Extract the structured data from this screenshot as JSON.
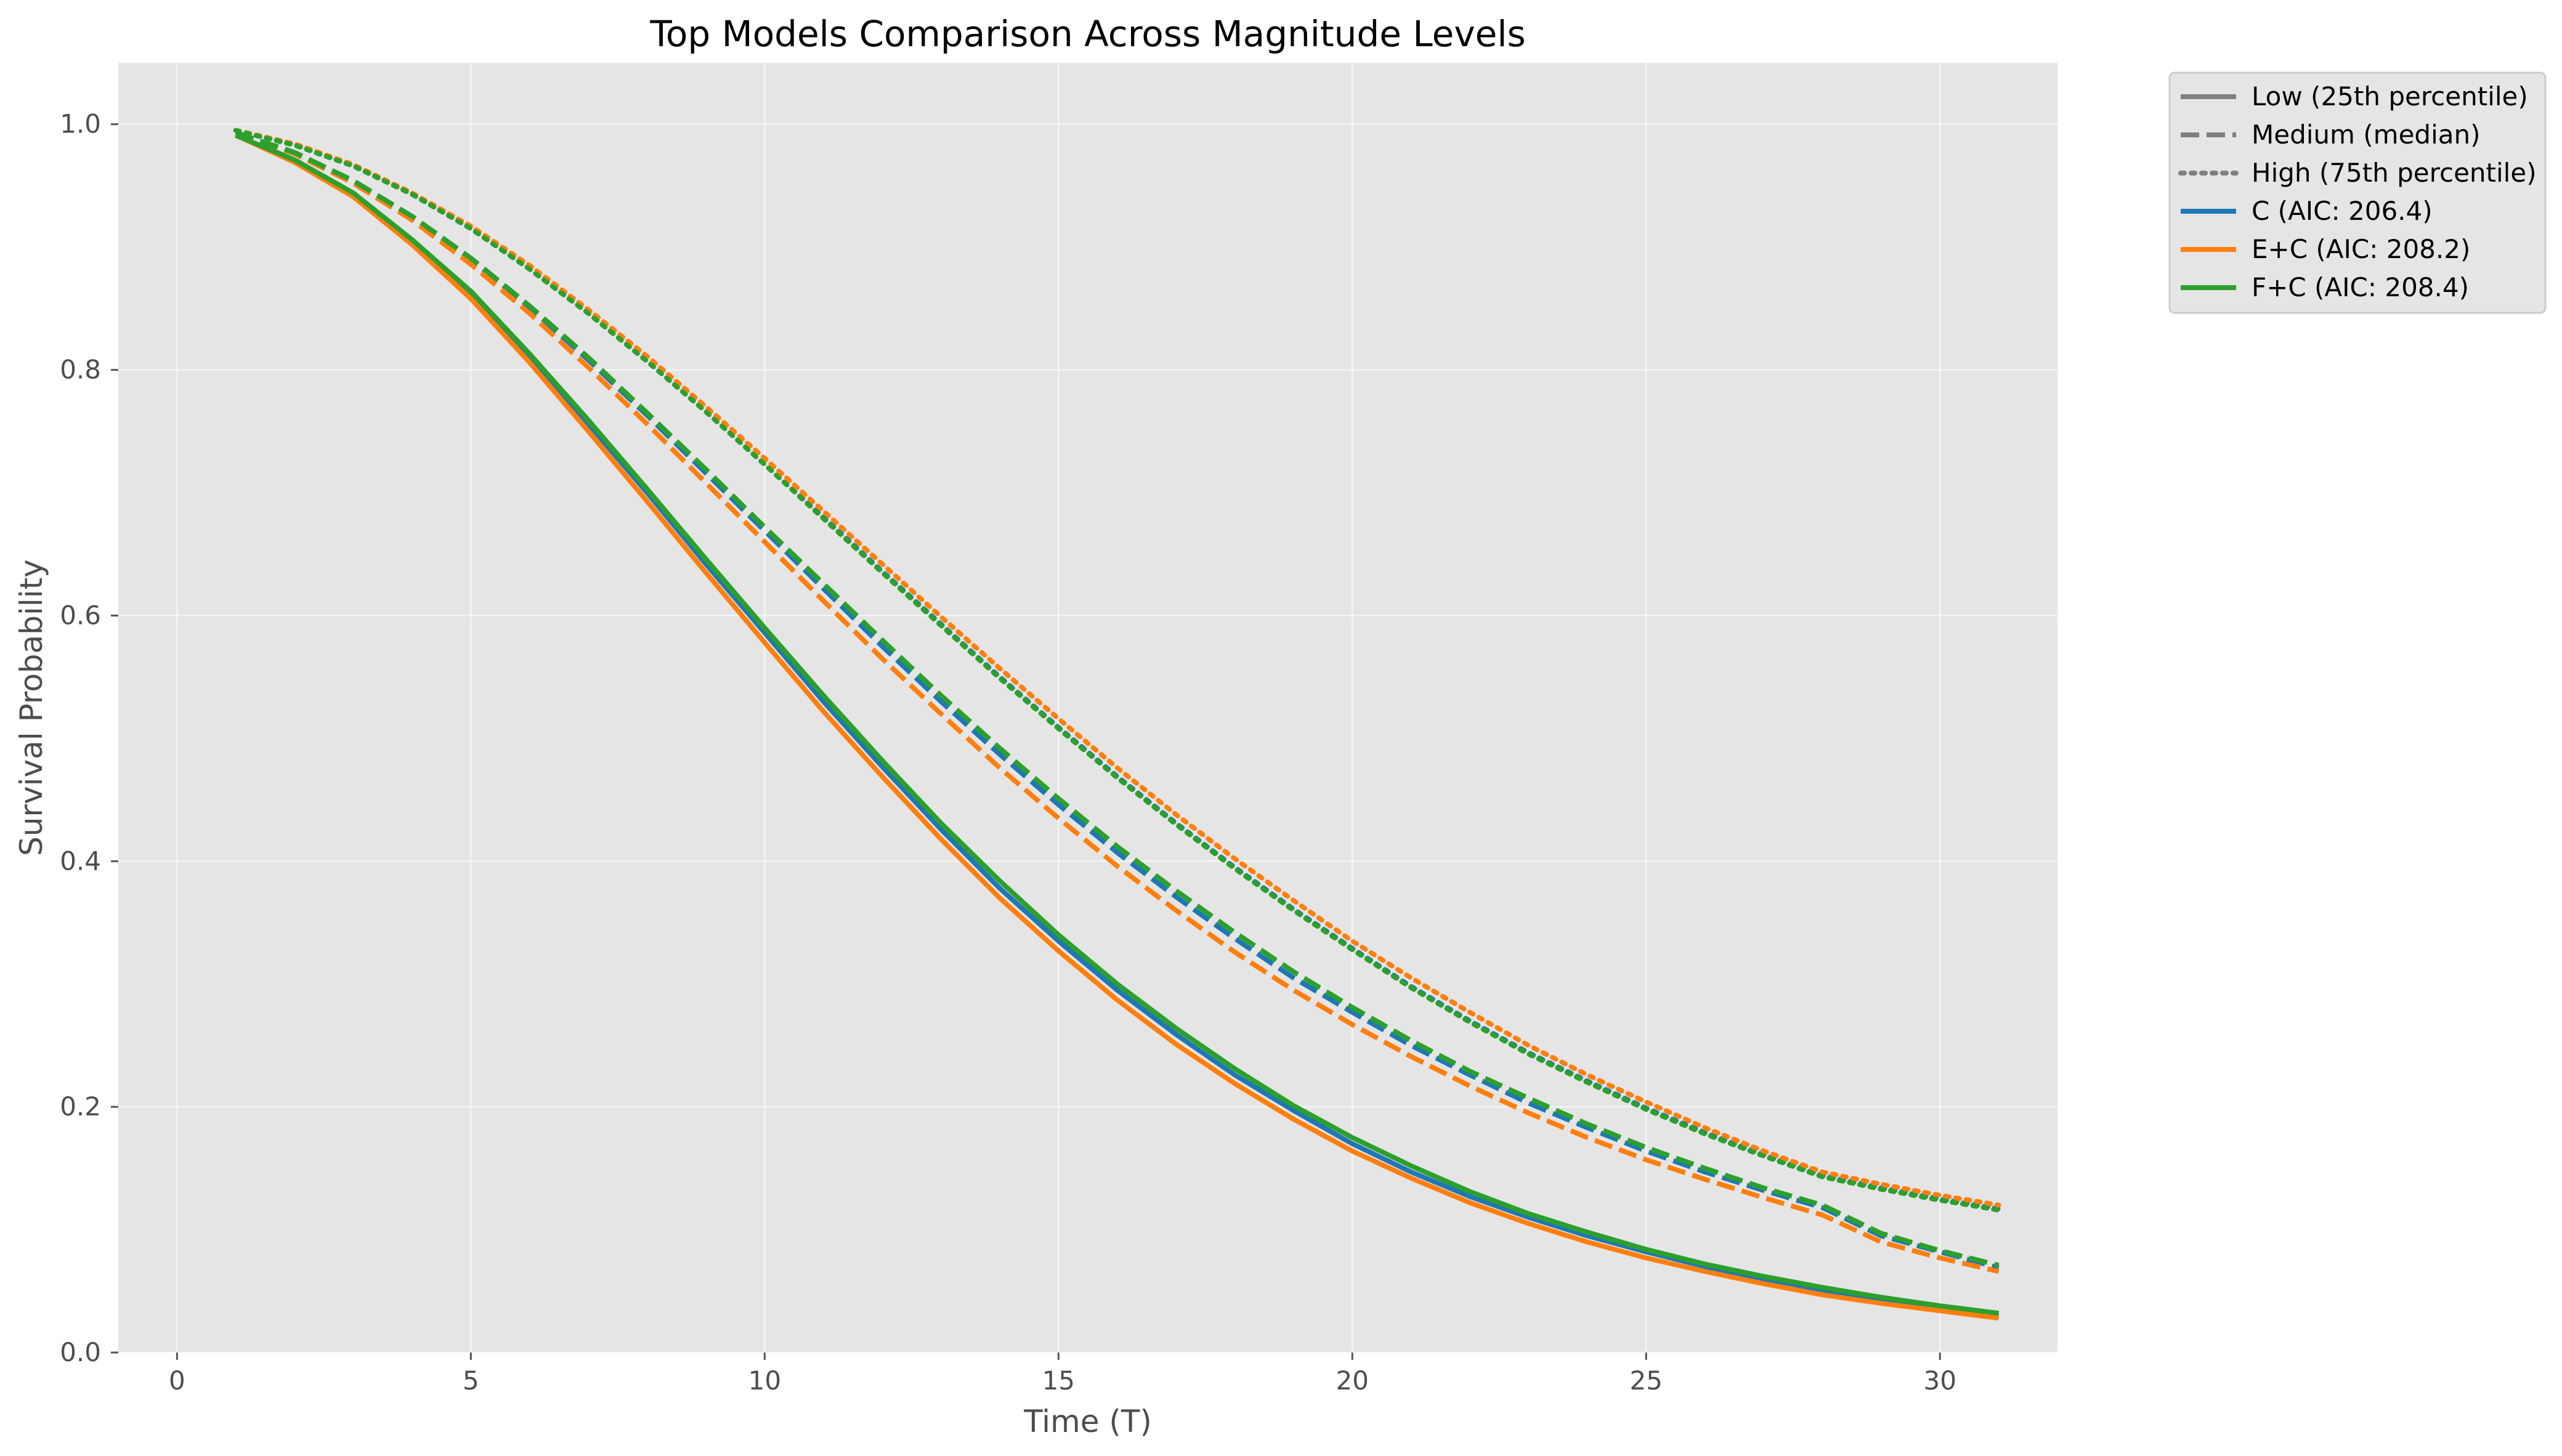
{
  "chart_data": {
    "type": "line",
    "title": "Top Models Comparison Across Magnitude Levels",
    "xlabel": "Time (T)",
    "ylabel": "Survival Probability",
    "xlim": [
      -1,
      32
    ],
    "ylim": [
      0,
      1.05
    ],
    "xticks": [
      0,
      5,
      10,
      15,
      20,
      25,
      30
    ],
    "xtick_labels": [
      "0",
      "5",
      "10",
      "15",
      "20",
      "25",
      "30"
    ],
    "yticks": [
      0,
      0.2,
      0.4,
      0.6,
      0.8,
      1.0
    ],
    "ytick_labels": [
      "0.0",
      "0.2",
      "0.4",
      "0.6",
      "0.8",
      "1.0"
    ],
    "grid": true,
    "legend_position": "outside-top-right",
    "background_color": "#e5e5e5",
    "x": [
      1,
      2,
      3,
      4,
      5,
      6,
      7,
      8,
      9,
      10,
      11,
      12,
      13,
      14,
      15,
      16,
      17,
      18,
      19,
      20,
      21,
      22,
      23,
      24,
      25,
      26,
      27,
      28,
      29,
      30,
      31
    ],
    "series": [
      {
        "name": "C (AIC: 206.4)",
        "model": "C",
        "level": "Low (25th percentile)",
        "color": "#1f77b4",
        "dash": "solid",
        "values": [
          0.991,
          0.97,
          0.943,
          0.905,
          0.862,
          0.811,
          0.756,
          0.7,
          0.642,
          0.586,
          0.53,
          0.477,
          0.426,
          0.378,
          0.335,
          0.295,
          0.259,
          0.226,
          0.197,
          0.17,
          0.147,
          0.127,
          0.11,
          0.095,
          0.082,
          0.07,
          0.06,
          0.051,
          0.043,
          0.036,
          0.03
        ]
      },
      {
        "name": "C (AIC: 206.4)",
        "model": "C",
        "level": "Medium (median)",
        "color": "#1f77b4",
        "dash": "dashed",
        "values": [
          0.993,
          0.977,
          0.954,
          0.925,
          0.89,
          0.851,
          0.808,
          0.763,
          0.716,
          0.669,
          0.622,
          0.575,
          0.53,
          0.487,
          0.446,
          0.407,
          0.371,
          0.337,
          0.305,
          0.277,
          0.25,
          0.226,
          0.203,
          0.183,
          0.164,
          0.147,
          0.132,
          0.118,
          0.095,
          0.082,
          0.069
        ]
      },
      {
        "name": "C (AIC: 206.4)",
        "model": "C",
        "level": "High (75th percentile)",
        "color": "#1f77b4",
        "dash": "dotted",
        "values": [
          0.995,
          0.983,
          0.966,
          0.943,
          0.915,
          0.882,
          0.846,
          0.807,
          0.766,
          0.723,
          0.68,
          0.636,
          0.593,
          0.55,
          0.509,
          0.469,
          0.431,
          0.395,
          0.361,
          0.329,
          0.298,
          0.27,
          0.244,
          0.221,
          0.199,
          0.179,
          0.161,
          0.144,
          0.134,
          0.125,
          0.117
        ]
      },
      {
        "name": "E+C (AIC: 208.2)",
        "model": "E+C",
        "level": "Low (25th percentile)",
        "color": "#ff7f0e",
        "dash": "solid",
        "values": [
          0.991,
          0.969,
          0.941,
          0.902,
          0.858,
          0.806,
          0.75,
          0.693,
          0.635,
          0.578,
          0.522,
          0.469,
          0.418,
          0.37,
          0.327,
          0.287,
          0.251,
          0.219,
          0.19,
          0.164,
          0.142,
          0.122,
          0.105,
          0.09,
          0.077,
          0.066,
          0.056,
          0.047,
          0.04,
          0.034,
          0.028
        ]
      },
      {
        "name": "E+C (AIC: 208.2)",
        "model": "E+C",
        "level": "Medium (median)",
        "color": "#ff7f0e",
        "dash": "dashed",
        "values": [
          0.993,
          0.976,
          0.952,
          0.922,
          0.886,
          0.846,
          0.802,
          0.756,
          0.708,
          0.66,
          0.612,
          0.565,
          0.52,
          0.476,
          0.435,
          0.396,
          0.36,
          0.326,
          0.295,
          0.267,
          0.241,
          0.217,
          0.195,
          0.175,
          0.157,
          0.141,
          0.126,
          0.112,
          0.09,
          0.077,
          0.066
        ]
      },
      {
        "name": "E+C (AIC: 208.2)",
        "model": "E+C",
        "level": "High (75th percentile)",
        "color": "#ff7f0e",
        "dash": "dotted",
        "values": [
          0.995,
          0.984,
          0.967,
          0.944,
          0.917,
          0.885,
          0.849,
          0.811,
          0.77,
          0.728,
          0.685,
          0.642,
          0.599,
          0.557,
          0.516,
          0.476,
          0.438,
          0.402,
          0.368,
          0.335,
          0.305,
          0.277,
          0.25,
          0.226,
          0.204,
          0.183,
          0.164,
          0.147,
          0.137,
          0.128,
          0.12
        ]
      },
      {
        "name": "F+C (AIC: 208.4)",
        "model": "F+C",
        "level": "Low (25th percentile)",
        "color": "#2ca02c",
        "dash": "solid",
        "values": [
          0.991,
          0.971,
          0.944,
          0.906,
          0.864,
          0.813,
          0.759,
          0.703,
          0.646,
          0.59,
          0.535,
          0.482,
          0.431,
          0.384,
          0.34,
          0.3,
          0.264,
          0.231,
          0.201,
          0.175,
          0.152,
          0.131,
          0.113,
          0.098,
          0.084,
          0.072,
          0.062,
          0.053,
          0.045,
          0.038,
          0.032
        ]
      },
      {
        "name": "F+C (AIC: 208.4)",
        "model": "F+C",
        "level": "Medium (median)",
        "color": "#2ca02c",
        "dash": "dashed",
        "values": [
          0.993,
          0.977,
          0.954,
          0.925,
          0.891,
          0.852,
          0.81,
          0.765,
          0.719,
          0.672,
          0.626,
          0.58,
          0.535,
          0.492,
          0.451,
          0.412,
          0.376,
          0.342,
          0.31,
          0.281,
          0.254,
          0.229,
          0.207,
          0.186,
          0.167,
          0.15,
          0.134,
          0.12,
          0.097,
          0.083,
          0.071
        ]
      },
      {
        "name": "F+C (AIC: 208.4)",
        "model": "F+C",
        "level": "High (75th percentile)",
        "color": "#2ca02c",
        "dash": "dotted",
        "values": [
          0.995,
          0.983,
          0.966,
          0.943,
          0.915,
          0.882,
          0.846,
          0.807,
          0.766,
          0.723,
          0.679,
          0.635,
          0.592,
          0.549,
          0.508,
          0.468,
          0.43,
          0.394,
          0.36,
          0.328,
          0.297,
          0.269,
          0.243,
          0.22,
          0.198,
          0.178,
          0.16,
          0.143,
          0.133,
          0.124,
          0.116
        ]
      }
    ],
    "legend": [
      {
        "label": "Low (25th percentile)",
        "color": "#808080",
        "dash": "solid"
      },
      {
        "label": "Medium (median)",
        "color": "#808080",
        "dash": "dashed"
      },
      {
        "label": "High (75th percentile)",
        "color": "#808080",
        "dash": "dotted"
      },
      {
        "label": "C (AIC: 206.4)",
        "color": "#1f77b4",
        "dash": "solid"
      },
      {
        "label": "E+C (AIC: 208.2)",
        "color": "#ff7f0e",
        "dash": "solid"
      },
      {
        "label": "F+C (AIC: 208.4)",
        "color": "#2ca02c",
        "dash": "solid"
      }
    ]
  }
}
